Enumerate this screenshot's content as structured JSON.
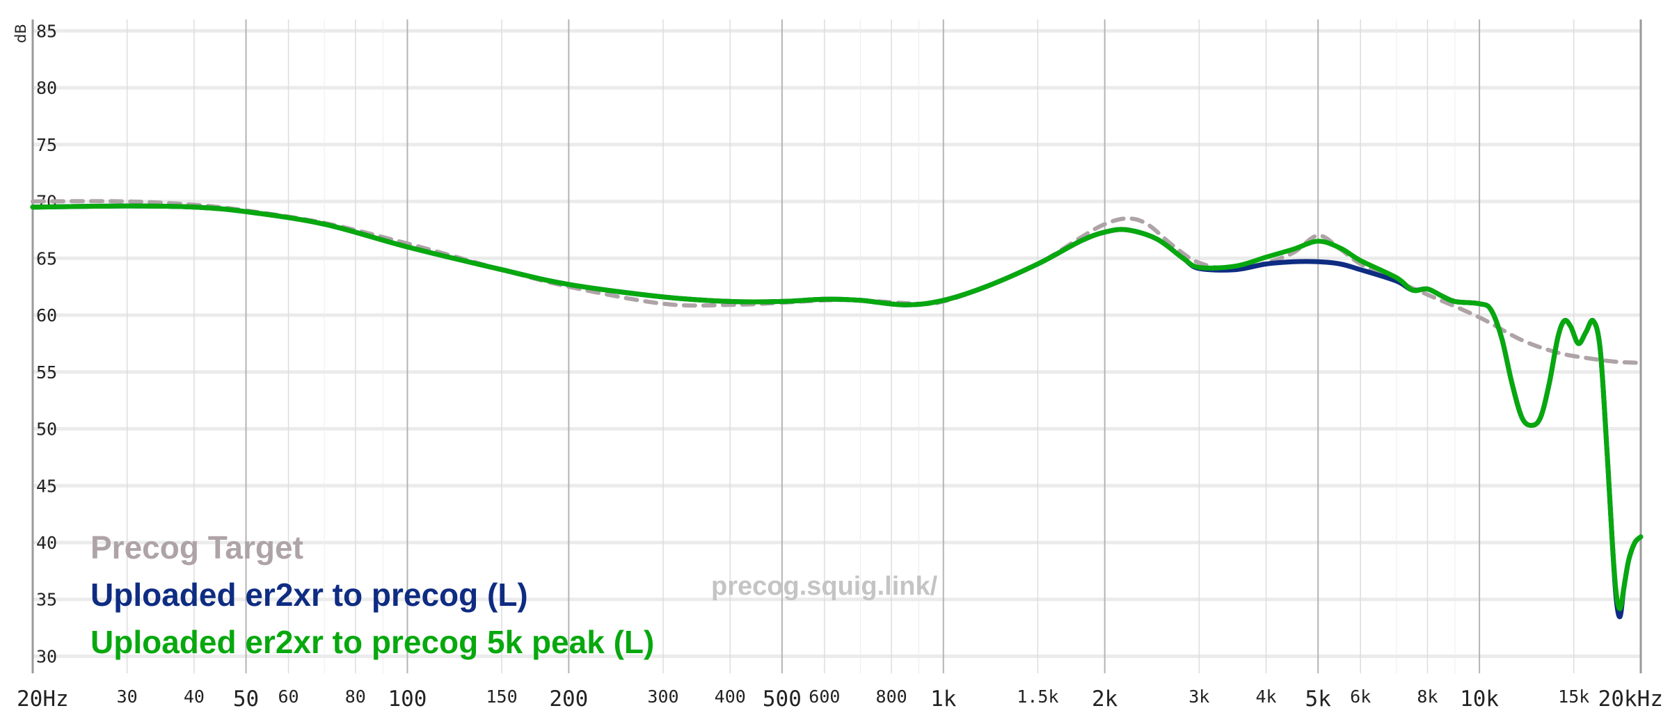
{
  "chart_data": {
    "type": "line",
    "title": "",
    "watermark": "precog.squig.link/",
    "ylabel": "dB",
    "xlabel": "",
    "x_scale": "log",
    "xlim": [
      20,
      20000
    ],
    "ylim": [
      28.5,
      86
    ],
    "grid": true,
    "legend_position": "bottom-left",
    "y_ticks": [
      {
        "value": 85,
        "label": "85"
      },
      {
        "value": 80,
        "label": "80"
      },
      {
        "value": 75,
        "label": "75"
      },
      {
        "value": 70,
        "label": "70"
      },
      {
        "value": 65,
        "label": "65"
      },
      {
        "value": 60,
        "label": "60"
      },
      {
        "value": 55,
        "label": "55"
      },
      {
        "value": 50,
        "label": "50"
      },
      {
        "value": 45,
        "label": "45"
      },
      {
        "value": 40,
        "label": "40"
      },
      {
        "value": 35,
        "label": "35"
      },
      {
        "value": 30,
        "label": "30"
      }
    ],
    "x_ticks": [
      {
        "value": 20,
        "label": "20Hz",
        "major": true
      },
      {
        "value": 30,
        "label": "30",
        "major": false
      },
      {
        "value": 40,
        "label": "40",
        "major": false
      },
      {
        "value": 50,
        "label": "50",
        "major": true
      },
      {
        "value": 60,
        "label": "60",
        "major": false
      },
      {
        "value": 80,
        "label": "80",
        "major": false
      },
      {
        "value": 100,
        "label": "100",
        "major": true
      },
      {
        "value": 150,
        "label": "150",
        "major": false
      },
      {
        "value": 200,
        "label": "200",
        "major": true
      },
      {
        "value": 300,
        "label": "300",
        "major": false
      },
      {
        "value": 400,
        "label": "400",
        "major": false
      },
      {
        "value": 500,
        "label": "500",
        "major": true
      },
      {
        "value": 600,
        "label": "600",
        "major": false
      },
      {
        "value": 800,
        "label": "800",
        "major": false
      },
      {
        "value": 1000,
        "label": "1k",
        "major": true
      },
      {
        "value": 1500,
        "label": "1.5k",
        "major": false
      },
      {
        "value": 2000,
        "label": "2k",
        "major": true
      },
      {
        "value": 3000,
        "label": "3k",
        "major": false
      },
      {
        "value": 4000,
        "label": "4k",
        "major": false
      },
      {
        "value": 5000,
        "label": "5k",
        "major": true
      },
      {
        "value": 6000,
        "label": "6k",
        "major": false
      },
      {
        "value": 8000,
        "label": "8k",
        "major": false
      },
      {
        "value": 10000,
        "label": "10k",
        "major": true
      },
      {
        "value": 15000,
        "label": "15k",
        "major": false
      },
      {
        "value": 20000,
        "label": "20kHz",
        "major": true
      }
    ],
    "minor_gridlines": [
      70,
      90,
      700,
      900,
      7000,
      9000
    ],
    "series": [
      {
        "name": "Precog Target",
        "color": "#aea3a6",
        "dashed": true,
        "points": [
          [
            20,
            70
          ],
          [
            30,
            70
          ],
          [
            40,
            69.7
          ],
          [
            50,
            69.2
          ],
          [
            70,
            68.1
          ],
          [
            100,
            66.3
          ],
          [
            150,
            64
          ],
          [
            200,
            62.5
          ],
          [
            300,
            61
          ],
          [
            400,
            60.9
          ],
          [
            500,
            61.1
          ],
          [
            600,
            61.3
          ],
          [
            700,
            61.3
          ],
          [
            900,
            61
          ],
          [
            1000,
            61.2
          ],
          [
            1200,
            62.5
          ],
          [
            1500,
            64.5
          ],
          [
            1800,
            66.8
          ],
          [
            2000,
            68
          ],
          [
            2200,
            68.5
          ],
          [
            2400,
            68
          ],
          [
            2700,
            66
          ],
          [
            3000,
            64.6
          ],
          [
            3500,
            64
          ],
          [
            4000,
            64.6
          ],
          [
            4500,
            65.5
          ],
          [
            5000,
            67
          ],
          [
            5500,
            65.8
          ],
          [
            6000,
            64.5
          ],
          [
            7000,
            63
          ],
          [
            8000,
            61.8
          ],
          [
            10000,
            59.8
          ],
          [
            12000,
            57.8
          ],
          [
            14000,
            56.7
          ],
          [
            16000,
            56.2
          ],
          [
            18000,
            55.9
          ],
          [
            20000,
            55.8
          ]
        ]
      },
      {
        "name": "Uploaded er2xr to precog (L)",
        "color": "#0e2c82",
        "dashed": false,
        "points": [
          [
            20,
            69.5
          ],
          [
            30,
            69.6
          ],
          [
            40,
            69.5
          ],
          [
            50,
            69.1
          ],
          [
            70,
            68
          ],
          [
            100,
            66
          ],
          [
            150,
            64
          ],
          [
            200,
            62.7
          ],
          [
            300,
            61.6
          ],
          [
            400,
            61.2
          ],
          [
            500,
            61.2
          ],
          [
            600,
            61.4
          ],
          [
            700,
            61.3
          ],
          [
            850,
            60.9
          ],
          [
            1000,
            61.3
          ],
          [
            1200,
            62.5
          ],
          [
            1500,
            64.5
          ],
          [
            1800,
            66.5
          ],
          [
            2000,
            67.3
          ],
          [
            2200,
            67.5
          ],
          [
            2500,
            66.7
          ],
          [
            2800,
            65
          ],
          [
            3000,
            64.1
          ],
          [
            3500,
            64
          ],
          [
            4000,
            64.5
          ],
          [
            4500,
            64.7
          ],
          [
            5000,
            64.7
          ],
          [
            5500,
            64.5
          ],
          [
            6000,
            64
          ],
          [
            7000,
            63
          ],
          [
            7500,
            62.2
          ],
          [
            8000,
            62.3
          ],
          [
            8500,
            61.7
          ],
          [
            9000,
            61.2
          ],
          [
            10000,
            61
          ],
          [
            10500,
            60.5
          ],
          [
            11000,
            58
          ],
          [
            11500,
            54
          ],
          [
            12000,
            51
          ],
          [
            12500,
            50.3
          ],
          [
            13000,
            51
          ],
          [
            13500,
            54
          ],
          [
            14000,
            58
          ],
          [
            14400,
            59.5
          ],
          [
            14800,
            59
          ],
          [
            15300,
            57.5
          ],
          [
            15800,
            58.5
          ],
          [
            16300,
            59.5
          ],
          [
            16800,
            57
          ],
          [
            17300,
            48
          ],
          [
            17700,
            40
          ],
          [
            18000,
            35
          ],
          [
            18300,
            33.5
          ],
          [
            18600,
            36
          ],
          [
            19000,
            38.5
          ],
          [
            19500,
            40
          ],
          [
            20000,
            40.5
          ]
        ]
      },
      {
        "name": "Uploaded er2xr to precog 5k peak (L)",
        "color": "#07a80e",
        "dashed": false,
        "points": [
          [
            20,
            69.5
          ],
          [
            30,
            69.6
          ],
          [
            40,
            69.5
          ],
          [
            50,
            69.1
          ],
          [
            70,
            68
          ],
          [
            100,
            66
          ],
          [
            150,
            64
          ],
          [
            200,
            62.7
          ],
          [
            300,
            61.6
          ],
          [
            400,
            61.2
          ],
          [
            500,
            61.2
          ],
          [
            600,
            61.4
          ],
          [
            700,
            61.3
          ],
          [
            850,
            60.9
          ],
          [
            1000,
            61.3
          ],
          [
            1200,
            62.5
          ],
          [
            1500,
            64.5
          ],
          [
            1800,
            66.5
          ],
          [
            2000,
            67.3
          ],
          [
            2200,
            67.5
          ],
          [
            2500,
            66.7
          ],
          [
            2800,
            65
          ],
          [
            3000,
            64.2
          ],
          [
            3500,
            64.3
          ],
          [
            4000,
            65.1
          ],
          [
            4500,
            65.8
          ],
          [
            5000,
            66.5
          ],
          [
            5500,
            65.9
          ],
          [
            6000,
            64.8
          ],
          [
            7000,
            63.3
          ],
          [
            7500,
            62.2
          ],
          [
            8000,
            62.3
          ],
          [
            8500,
            61.7
          ],
          [
            9000,
            61.2
          ],
          [
            10000,
            61
          ],
          [
            10500,
            60.5
          ],
          [
            11000,
            58
          ],
          [
            11500,
            54
          ],
          [
            12000,
            51
          ],
          [
            12500,
            50.3
          ],
          [
            13000,
            51
          ],
          [
            13500,
            54
          ],
          [
            14000,
            58
          ],
          [
            14400,
            59.5
          ],
          [
            14800,
            59
          ],
          [
            15300,
            57.5
          ],
          [
            15800,
            58.5
          ],
          [
            16300,
            59.5
          ],
          [
            16800,
            57
          ],
          [
            17300,
            48
          ],
          [
            17700,
            40
          ],
          [
            18000,
            35.5
          ],
          [
            18300,
            34.2
          ],
          [
            18600,
            36
          ],
          [
            19000,
            38.5
          ],
          [
            19500,
            40
          ],
          [
            20000,
            40.5
          ]
        ]
      }
    ]
  }
}
